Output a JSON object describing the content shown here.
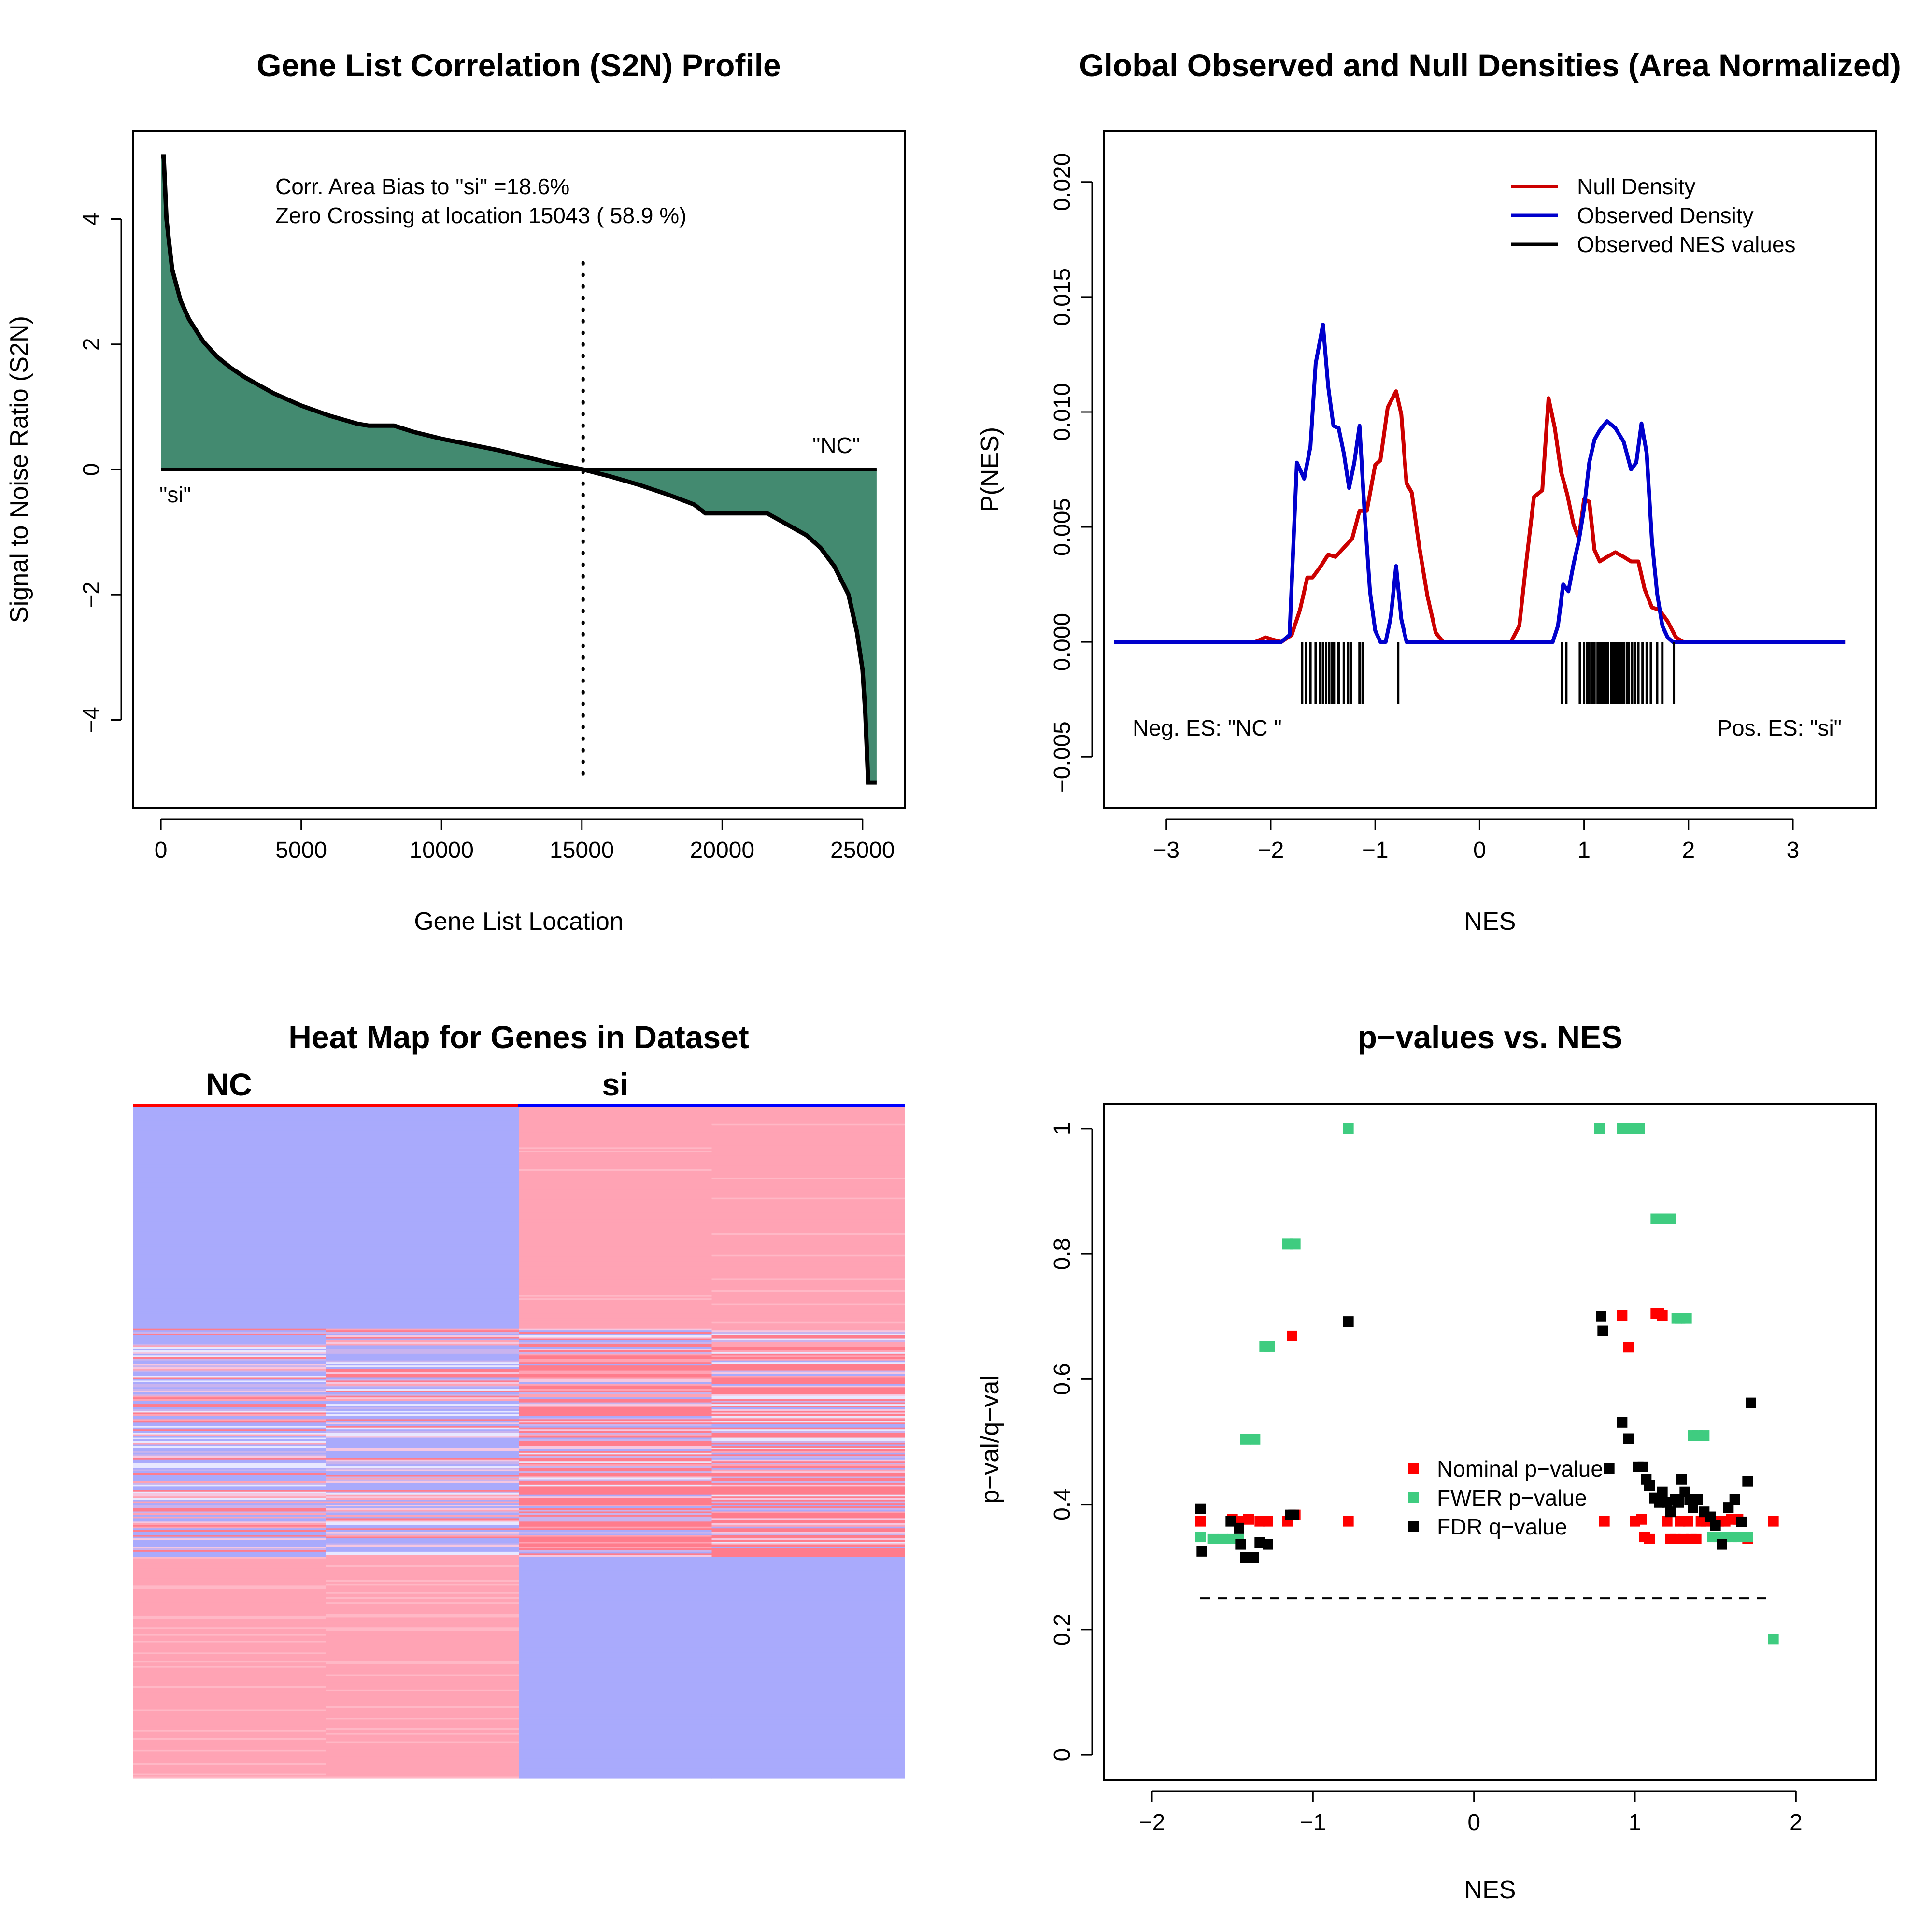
{
  "panels": {
    "s2n": {
      "title": "Gene List Correlation (S2N) Profile",
      "xlabel": "Gene List Location",
      "ylabel": "Signal to Noise Ratio (S2N)",
      "annotation_line1": "Corr. Area Bias to \"si\" =18.6%",
      "annotation_line2": "Zero Crossing at location  15043  ( 58.9  %)",
      "label_si": "\"si\"",
      "label_nc": "\"NC\""
    },
    "density": {
      "title": "Global Observed and Null Densities (Area Normalized)",
      "xlabel": "NES",
      "ylabel": "P(NES)",
      "neg_label": "Neg. ES: \"NC \"",
      "pos_label": "Pos. ES: \"si\"",
      "legend": [
        "Null Density",
        "Observed Density",
        "Observed NES values"
      ]
    },
    "heatmap": {
      "title": "Heat Map for Genes in Dataset",
      "group_left": "NC",
      "group_right": "si"
    },
    "pvalues": {
      "title": "p−values vs. NES",
      "xlabel": "NES",
      "ylabel": "p−val/q−val",
      "legend": [
        "Nominal p−value",
        "FWER p−value",
        "FDR q−value"
      ]
    }
  },
  "colors": {
    "area_fill": "#438a70",
    "null_density": "#cc0000",
    "observed_density": "#0000cc",
    "nominal": "#ff0000",
    "fwer": "#3fcc80",
    "fdr": "#000000",
    "heat_pink": "#ffa3b4",
    "heat_blue": "#a9aafc",
    "heat_red": "#ff7c8c",
    "heat_light": "#e8e8ff"
  },
  "chart_data": [
    {
      "type": "area",
      "title": "Gene List Correlation (S2N) Profile",
      "xlabel": "Gene List Location",
      "ylabel": "Signal to Noise Ratio (S2N)",
      "xlim": [
        -1000,
        26500
      ],
      "ylim": [
        -5.4,
        5.4
      ],
      "xticks": [
        0,
        5000,
        10000,
        15000,
        20000,
        25000
      ],
      "yticks": [
        -4,
        -2,
        0,
        2,
        4
      ],
      "zero_crossing": 15043,
      "x": [
        0,
        100,
        200,
        400,
        700,
        1000,
        1500,
        2000,
        2500,
        3000,
        4000,
        5000,
        6000,
        7000,
        7400,
        8300,
        9000,
        10000,
        11000,
        12000,
        13000,
        14000,
        15043,
        16000,
        17000,
        18000,
        19000,
        19400,
        20000,
        21000,
        21600,
        22000,
        23000,
        23500,
        24000,
        24500,
        24800,
        25000,
        25100,
        25200,
        25300,
        25500
      ],
      "y": [
        5.0,
        5.0,
        4.0,
        3.2,
        2.7,
        2.4,
        2.05,
        1.8,
        1.62,
        1.47,
        1.22,
        1.02,
        0.86,
        0.73,
        0.7,
        0.7,
        0.6,
        0.49,
        0.4,
        0.31,
        0.2,
        0.09,
        0.0,
        -0.11,
        -0.24,
        -0.39,
        -0.56,
        -0.7,
        -0.7,
        -0.7,
        -0.7,
        -0.8,
        -1.05,
        -1.25,
        -1.55,
        -2.0,
        -2.6,
        -3.2,
        -3.9,
        -5.0,
        -5.0,
        -5.0
      ]
    },
    {
      "type": "line",
      "title": "Global Observed and Null Densities (Area Normalized)",
      "xlabel": "NES",
      "ylabel": "P(NES)",
      "xlim": [
        -3.6,
        3.8
      ],
      "ylim": [
        -0.0072,
        0.0222
      ],
      "xticks": [
        -3,
        -2,
        -1,
        0,
        1,
        2,
        3
      ],
      "yticks": [
        -0.005,
        0.0,
        0.005,
        0.01,
        0.015,
        0.02
      ],
      "ytick_labels": [
        "−0.005",
        "0.000",
        "0.005",
        "0.010",
        "0.015",
        "0.020"
      ],
      "series": [
        {
          "name": "Null Density",
          "x": [
            -3.5,
            -2.15,
            -2.05,
            -1.98,
            -1.9,
            -1.8,
            -1.72,
            -1.65,
            -1.6,
            -1.52,
            -1.45,
            -1.38,
            -1.3,
            -1.22,
            -1.15,
            -1.08,
            -1.0,
            -0.95,
            -0.88,
            -0.8,
            -0.75,
            -0.7,
            -0.65,
            -0.58,
            -0.5,
            -0.42,
            -0.35,
            -0.3,
            0.3,
            0.38,
            0.45,
            0.52,
            0.6,
            0.66,
            0.72,
            0.78,
            0.84,
            0.9,
            0.95,
            1.0,
            1.05,
            1.1,
            1.15,
            1.22,
            1.3,
            1.38,
            1.45,
            1.52,
            1.58,
            1.65,
            1.72,
            1.8,
            1.88,
            1.95,
            3.5
          ],
          "y": [
            0.0,
            0.0,
            0.0002,
            0.0001,
            0.0,
            0.0003,
            0.0014,
            0.0028,
            0.0028,
            0.0033,
            0.0038,
            0.0037,
            0.0041,
            0.0045,
            0.0057,
            0.0057,
            0.0077,
            0.0079,
            0.0102,
            0.0109,
            0.0099,
            0.0069,
            0.0065,
            0.0042,
            0.002,
            0.0004,
            0.0,
            0.0,
            0.0,
            0.0007,
            0.0036,
            0.0063,
            0.0066,
            0.0106,
            0.0093,
            0.0074,
            0.0064,
            0.0051,
            0.0045,
            0.0062,
            0.0061,
            0.004,
            0.0035,
            0.0037,
            0.0039,
            0.0037,
            0.0035,
            0.0035,
            0.0023,
            0.0015,
            0.0014,
            0.0009,
            0.0002,
            0.0,
            0.0
          ]
        },
        {
          "name": "Observed Density",
          "x": [
            -3.5,
            -1.9,
            -1.82,
            -1.75,
            -1.68,
            -1.62,
            -1.57,
            -1.5,
            -1.45,
            -1.4,
            -1.35,
            -1.3,
            -1.25,
            -1.2,
            -1.15,
            -1.1,
            -1.05,
            -1.0,
            -0.95,
            -0.9,
            -0.85,
            -0.8,
            -0.75,
            -0.7,
            -0.65,
            -0.5,
            0.5,
            0.65,
            0.7,
            0.75,
            0.8,
            0.85,
            0.9,
            0.95,
            1.0,
            1.05,
            1.1,
            1.15,
            1.22,
            1.3,
            1.38,
            1.45,
            1.5,
            1.55,
            1.6,
            1.65,
            1.7,
            1.75,
            1.8,
            1.85,
            1.9,
            1.95,
            3.5
          ],
          "y": [
            0.0,
            0.0,
            0.0003,
            0.0078,
            0.0071,
            0.0085,
            0.0121,
            0.0138,
            0.0111,
            0.0094,
            0.0093,
            0.0082,
            0.0067,
            0.0078,
            0.0094,
            0.0055,
            0.0022,
            0.0005,
            0.0,
            0.0,
            0.0011,
            0.0033,
            0.001,
            0.0,
            0.0,
            0.0,
            0.0,
            0.0,
            0.0,
            0.0007,
            0.0025,
            0.0022,
            0.0034,
            0.0044,
            0.0058,
            0.0078,
            0.0088,
            0.0092,
            0.0096,
            0.0093,
            0.0087,
            0.0075,
            0.0078,
            0.0095,
            0.0082,
            0.0044,
            0.0021,
            0.0007,
            0.0002,
            0.0,
            0.0,
            0.0,
            0.0
          ]
        }
      ],
      "observed_nes_values": [
        -1.7,
        -1.66,
        -1.62,
        -1.57,
        -1.53,
        -1.5,
        -1.47,
        -1.44,
        -1.41,
        -1.39,
        -1.35,
        -1.3,
        -1.26,
        -1.23,
        -1.15,
        -1.12,
        -0.78,
        0.79,
        0.83,
        0.96,
        1.0,
        1.03,
        1.05,
        1.08,
        1.1,
        1.13,
        1.15,
        1.17,
        1.19,
        1.21,
        1.23,
        1.26,
        1.28,
        1.3,
        1.32,
        1.34,
        1.36,
        1.38,
        1.41,
        1.43,
        1.46,
        1.49,
        1.52,
        1.56,
        1.6,
        1.64,
        1.7,
        1.75,
        1.86
      ]
    },
    {
      "type": "heatmap",
      "title": "Heat Map for Genes in Dataset",
      "columns": [
        "NC",
        "NC",
        "si",
        "si"
      ],
      "row_blocks": [
        {
          "from": 0.0,
          "to": 0.33,
          "values": [
            "blue",
            "blue",
            "pink",
            "pink"
          ]
        },
        {
          "from": 0.33,
          "to": 0.67,
          "values": [
            "mixed",
            "mixed",
            "mixed",
            "mixed"
          ]
        },
        {
          "from": 0.67,
          "to": 1.0,
          "values": [
            "pink",
            "pink",
            "blue",
            "blue"
          ]
        }
      ]
    },
    {
      "type": "scatter",
      "title": "p−values vs. NES",
      "xlabel": "NES",
      "ylabel": "p−val/q−val",
      "xlim": [
        -2.3,
        2.5
      ],
      "ylim": [
        -0.04,
        1.04
      ],
      "xticks": [
        -2,
        -1,
        0,
        1,
        2
      ],
      "yticks": [
        0.0,
        0.2,
        0.4,
        0.6,
        0.8,
        1.0
      ],
      "threshold": {
        "y": 0.25,
        "x_from": -1.7,
        "x_to": 1.86
      },
      "series": [
        {
          "name": "Nominal p−value",
          "x": [
            -1.7,
            -1.5,
            -1.46,
            -1.4,
            -1.33,
            -1.28,
            -1.16,
            -1.13,
            -1.11,
            -0.78,
            0.81,
            0.92,
            0.96,
            1.0,
            1.04,
            1.06,
            1.09,
            1.13,
            1.15,
            1.17,
            1.2,
            1.22,
            1.25,
            1.28,
            1.3,
            1.33,
            1.35,
            1.38,
            1.41,
            1.44,
            1.47,
            1.52,
            1.56,
            1.6,
            1.64,
            1.7,
            1.86
          ],
          "y": [
            0.373,
            0.376,
            0.373,
            0.376,
            0.373,
            0.373,
            0.373,
            0.669,
            0.383,
            0.373,
            0.373,
            0.702,
            0.651,
            0.373,
            0.376,
            0.348,
            0.345,
            0.705,
            0.705,
            0.702,
            0.373,
            0.345,
            0.345,
            0.373,
            0.345,
            0.373,
            0.345,
            0.345,
            0.373,
            0.373,
            0.376,
            0.373,
            0.373,
            0.376,
            0.376,
            0.345,
            0.373
          ]
        },
        {
          "name": "FWER p−value",
          "x": [
            -1.7,
            -1.62,
            -1.56,
            -1.5,
            -1.46,
            -1.42,
            -1.36,
            -1.3,
            -1.27,
            -1.16,
            -1.11,
            -0.78,
            0.78,
            0.92,
            0.97,
            1.03,
            1.13,
            1.16,
            1.19,
            1.22,
            1.26,
            1.28,
            1.32,
            1.36,
            1.39,
            1.43,
            1.48,
            1.52,
            1.56,
            1.6,
            1.64,
            1.7,
            1.86
          ],
          "y": [
            0.348,
            0.345,
            0.345,
            0.345,
            0.345,
            0.504,
            0.504,
            0.652,
            0.652,
            0.816,
            0.816,
            1.0,
            1.0,
            1.0,
            1.0,
            1.0,
            0.856,
            0.856,
            0.856,
            0.856,
            0.697,
            0.697,
            0.697,
            0.51,
            0.51,
            0.51,
            0.348,
            0.348,
            0.348,
            0.348,
            0.348,
            0.348,
            0.185
          ]
        },
        {
          "name": "FDR q−value",
          "x": [
            -1.7,
            -1.69,
            -1.51,
            -1.46,
            -1.45,
            -1.42,
            -1.37,
            -1.33,
            -1.28,
            -1.14,
            -1.12,
            -0.78,
            0.79,
            0.8,
            0.84,
            0.92,
            0.96,
            1.02,
            1.05,
            1.07,
            1.09,
            1.12,
            1.15,
            1.17,
            1.2,
            1.22,
            1.25,
            1.27,
            1.29,
            1.31,
            1.34,
            1.36,
            1.39,
            1.43,
            1.47,
            1.5,
            1.54,
            1.58,
            1.62,
            1.66,
            1.7,
            1.72
          ],
          "y": [
            0.393,
            0.325,
            0.373,
            0.362,
            0.336,
            0.315,
            0.315,
            0.339,
            0.336,
            0.383,
            0.383,
            0.692,
            0.7,
            0.677,
            0.457,
            0.531,
            0.505,
            0.46,
            0.46,
            0.44,
            0.43,
            0.41,
            0.403,
            0.42,
            0.403,
            0.388,
            0.408,
            0.403,
            0.44,
            0.42,
            0.408,
            0.395,
            0.408,
            0.388,
            0.38,
            0.366,
            0.336,
            0.395,
            0.408,
            0.372,
            0.437,
            0.562
          ]
        }
      ]
    }
  ]
}
